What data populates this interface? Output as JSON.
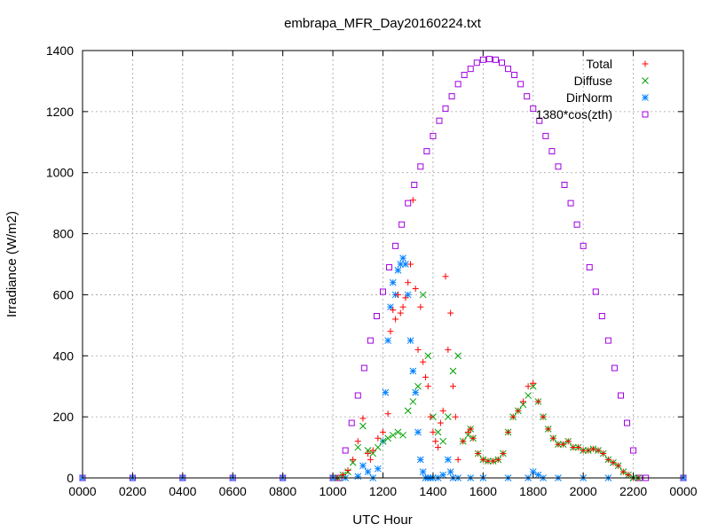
{
  "chart_data": {
    "type": "scatter",
    "title": "embrapa_MFR_Day20160224.txt",
    "xlabel": "UTC Hour",
    "ylabel": "Irradiance (W/m2)",
    "xlim": [
      0,
      24
    ],
    "ylim": [
      0,
      1400
    ],
    "grid": true,
    "legend_position": "top-right",
    "x_ticks": [
      {
        "value": 0,
        "label": "0000"
      },
      {
        "value": 2,
        "label": "0200"
      },
      {
        "value": 4,
        "label": "0400"
      },
      {
        "value": 6,
        "label": "0600"
      },
      {
        "value": 8,
        "label": "0800"
      },
      {
        "value": 10,
        "label": "1000"
      },
      {
        "value": 12,
        "label": "1200"
      },
      {
        "value": 14,
        "label": "1400"
      },
      {
        "value": 16,
        "label": "1600"
      },
      {
        "value": 18,
        "label": "1800"
      },
      {
        "value": 20,
        "label": "2000"
      },
      {
        "value": 22,
        "label": "2200"
      },
      {
        "value": 24,
        "label": "0000"
      }
    ],
    "y_ticks": [
      {
        "value": 0,
        "label": "0"
      },
      {
        "value": 200,
        "label": "200"
      },
      {
        "value": 400,
        "label": "400"
      },
      {
        "value": 600,
        "label": "600"
      },
      {
        "value": 800,
        "label": "800"
      },
      {
        "value": 1000,
        "label": "1000"
      },
      {
        "value": 1200,
        "label": "1200"
      },
      {
        "value": 1400,
        "label": "1400"
      }
    ],
    "series": [
      {
        "name": "Total",
        "marker": "plus",
        "color": "#ff0000",
        "x": [
          10.2,
          10.4,
          10.6,
          10.8,
          11.0,
          11.2,
          11.4,
          11.5,
          11.6,
          11.8,
          12.0,
          12.2,
          12.3,
          12.4,
          12.5,
          12.6,
          12.7,
          12.8,
          12.9,
          13.0,
          13.1,
          13.2,
          13.3,
          13.4,
          13.5,
          13.6,
          13.7,
          13.8,
          13.9,
          14.0,
          14.1,
          14.2,
          14.3,
          14.4,
          14.5,
          14.6,
          14.7,
          14.8,
          14.9,
          15.0,
          15.2,
          15.4,
          15.5,
          15.6,
          15.8,
          16.0,
          16.2,
          16.4,
          16.6,
          16.8,
          17.0,
          17.2,
          17.4,
          17.6,
          17.8,
          18.0,
          18.2,
          18.4,
          18.6,
          18.8,
          19.0,
          19.2,
          19.4,
          19.6,
          19.8,
          20.0,
          20.2,
          20.4,
          20.6,
          20.8,
          21.0,
          21.2,
          21.4,
          21.6,
          21.8,
          22.0,
          22.2
        ],
        "y": [
          0,
          10,
          25,
          60,
          120,
          195,
          80,
          60,
          90,
          130,
          150,
          210,
          480,
          550,
          520,
          600,
          540,
          560,
          590,
          640,
          700,
          910,
          620,
          420,
          560,
          380,
          330,
          300,
          200,
          150,
          120,
          100,
          180,
          220,
          660,
          420,
          540,
          300,
          200,
          60,
          120,
          150,
          160,
          130,
          80,
          60,
          55,
          55,
          60,
          80,
          150,
          200,
          220,
          250,
          300,
          310,
          250,
          200,
          160,
          130,
          110,
          110,
          120,
          100,
          100,
          90,
          90,
          95,
          90,
          80,
          60,
          50,
          40,
          20,
          10,
          0,
          0
        ]
      },
      {
        "name": "Diffuse",
        "marker": "cross",
        "color": "#00a000",
        "x": [
          10.2,
          10.4,
          10.6,
          10.8,
          11.0,
          11.2,
          11.4,
          11.6,
          11.8,
          12.0,
          12.2,
          12.4,
          12.6,
          12.8,
          13.0,
          13.2,
          13.4,
          13.6,
          13.8,
          14.0,
          14.2,
          14.4,
          14.6,
          14.8,
          15.0,
          15.2,
          15.4,
          15.5,
          15.6,
          15.8,
          16.0,
          16.2,
          16.4,
          16.6,
          16.8,
          17.0,
          17.2,
          17.4,
          17.6,
          17.8,
          18.0,
          18.2,
          18.4,
          18.6,
          18.8,
          19.0,
          19.2,
          19.4,
          19.6,
          19.8,
          20.0,
          20.2,
          20.4,
          20.6,
          20.8,
          21.0,
          21.2,
          21.4,
          21.6,
          21.8,
          22.0,
          22.2
        ],
        "y": [
          0,
          10,
          20,
          50,
          100,
          170,
          90,
          80,
          100,
          120,
          130,
          140,
          150,
          140,
          220,
          250,
          300,
          600,
          400,
          200,
          150,
          120,
          200,
          350,
          400,
          120,
          140,
          160,
          130,
          80,
          60,
          55,
          55,
          60,
          80,
          150,
          200,
          220,
          240,
          270,
          300,
          250,
          200,
          160,
          130,
          110,
          110,
          120,
          100,
          100,
          90,
          90,
          95,
          90,
          80,
          60,
          50,
          40,
          20,
          10,
          0,
          0
        ]
      },
      {
        "name": "DirNorm",
        "marker": "star",
        "color": "#0080ff",
        "x": [
          0,
          2,
          4,
          6,
          8,
          10,
          10.5,
          11.0,
          11.2,
          11.4,
          11.6,
          11.8,
          12.0,
          12.1,
          12.2,
          12.3,
          12.4,
          12.5,
          12.6,
          12.7,
          12.8,
          12.9,
          13.0,
          13.1,
          13.2,
          13.3,
          13.4,
          13.5,
          13.6,
          13.7,
          13.8,
          13.9,
          14.0,
          14.2,
          14.4,
          14.6,
          14.7,
          14.8,
          15.0,
          15.5,
          16.0,
          17.0,
          17.8,
          18.0,
          18.2,
          18.4,
          19.0,
          20.0,
          21.0,
          22.0,
          24.0
        ],
        "y": [
          0,
          0,
          0,
          0,
          0,
          0,
          0,
          5,
          40,
          20,
          0,
          30,
          120,
          280,
          450,
          560,
          640,
          600,
          680,
          700,
          720,
          700,
          600,
          450,
          350,
          280,
          150,
          60,
          20,
          0,
          0,
          0,
          0,
          0,
          10,
          60,
          20,
          0,
          0,
          0,
          0,
          0,
          0,
          20,
          10,
          0,
          0,
          0,
          0,
          0,
          0
        ]
      },
      {
        "name": "1380*cos(zth)",
        "marker": "square",
        "color": "#a000e0",
        "x": [
          0,
          2,
          4,
          6,
          8,
          10,
          10.25,
          10.5,
          10.75,
          11.0,
          11.25,
          11.5,
          11.75,
          12.0,
          12.25,
          12.5,
          12.75,
          13.0,
          13.25,
          13.5,
          13.75,
          14.0,
          14.25,
          14.5,
          14.75,
          15.0,
          15.25,
          15.5,
          15.75,
          16.0,
          16.25,
          16.5,
          16.75,
          17.0,
          17.25,
          17.5,
          17.75,
          18.0,
          18.25,
          18.5,
          18.75,
          19.0,
          19.25,
          19.5,
          19.75,
          20.0,
          20.25,
          20.5,
          20.75,
          21.0,
          21.25,
          21.5,
          21.75,
          22.0,
          22.25,
          22.5,
          24.0
        ],
        "y": [
          0,
          0,
          0,
          0,
          0,
          0,
          0,
          90,
          180,
          270,
          360,
          450,
          530,
          610,
          690,
          760,
          830,
          900,
          960,
          1020,
          1070,
          1120,
          1170,
          1210,
          1250,
          1290,
          1320,
          1340,
          1360,
          1370,
          1372,
          1370,
          1360,
          1340,
          1320,
          1290,
          1250,
          1210,
          1170,
          1120,
          1070,
          1020,
          960,
          900,
          830,
          760,
          690,
          610,
          530,
          450,
          360,
          270,
          180,
          90,
          0,
          0,
          0
        ]
      }
    ]
  }
}
